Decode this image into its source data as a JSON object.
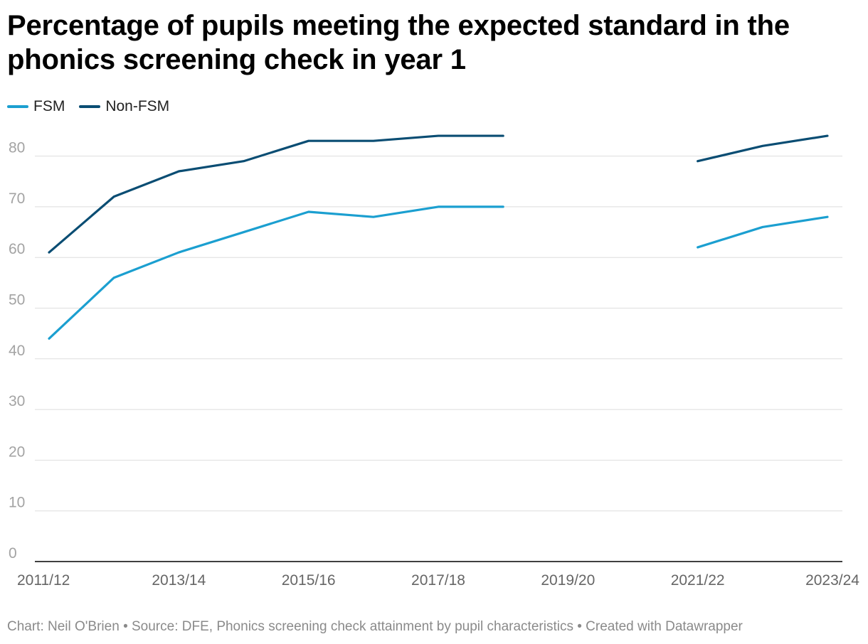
{
  "title": "Percentage of pupils meeting the expected standard in the phonics screening check in year 1",
  "footer": "Chart: Neil O'Brien • Source: DFE, Phonics screening check attainment by pupil characteristics • Created with Datawrapper",
  "colors": {
    "fsm": "#1b9fd0",
    "non_fsm": "#0a4d73",
    "grid": "#dedede",
    "axis": "#000000"
  },
  "chart_data": {
    "type": "line",
    "title": "Percentage of pupils meeting the expected standard in the phonics screening check in year 1",
    "x": [
      "2011/12",
      "2012/13",
      "2013/14",
      "2014/15",
      "2015/16",
      "2016/17",
      "2017/18",
      "2018/19",
      "2019/20",
      "2020/21",
      "2021/22",
      "2022/23",
      "2023/24"
    ],
    "x_tick_labels": [
      "2011/12",
      "2013/14",
      "2015/16",
      "2017/18",
      "2019/20",
      "2021/22",
      "2023/24"
    ],
    "y_ticks": [
      0,
      10,
      20,
      30,
      40,
      50,
      60,
      70,
      80
    ],
    "ylim": [
      0,
      87
    ],
    "xlabel": "",
    "ylabel": "",
    "grid": true,
    "legend": "top-left",
    "series": [
      {
        "name": "FSM",
        "color_key": "fsm",
        "values": [
          44,
          56,
          61,
          65,
          69,
          68,
          70,
          70,
          null,
          null,
          62,
          66,
          68
        ]
      },
      {
        "name": "Non-FSM",
        "color_key": "non_fsm",
        "values": [
          61,
          72,
          77,
          79,
          83,
          83,
          84,
          84,
          null,
          null,
          79,
          82,
          84
        ]
      }
    ]
  }
}
